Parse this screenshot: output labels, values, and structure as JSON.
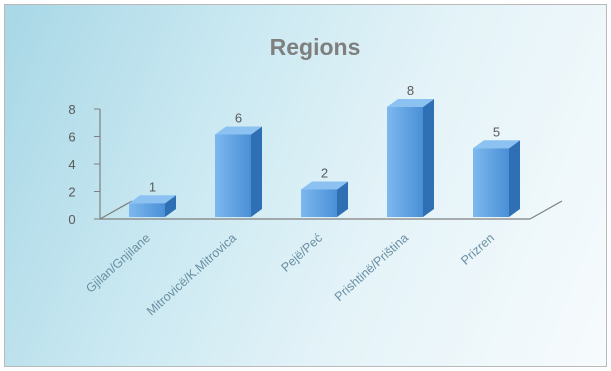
{
  "chart_data": {
    "type": "bar",
    "title": "Regions",
    "categories": [
      "Gjilan/Gnjilane",
      "Mitrovicë/K.Mitrovica",
      "Pejë/Peć",
      "Prishtinë/Priština",
      "Prizren"
    ],
    "values": [
      1,
      6,
      2,
      8,
      5
    ],
    "y_ticks": [
      "0",
      "2",
      "4",
      "6",
      "8"
    ],
    "data_labels": [
      "1",
      "6",
      "2",
      "8",
      "5"
    ],
    "ylim": [
      0,
      8
    ],
    "xlabel": "",
    "ylabel": "",
    "grid": false,
    "legend": "none",
    "style": "3d-column",
    "colors": {
      "bar_front": "#4a8fd6",
      "bar_front_light": "#7db8ef",
      "bar_side": "#2f6fb3",
      "bar_top": "#8cc2f2",
      "axis": "#7f7f7f"
    }
  }
}
